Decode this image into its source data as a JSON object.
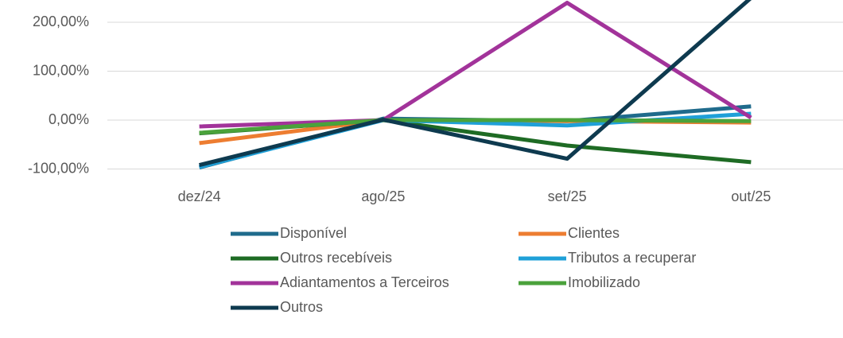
{
  "chart_data": {
    "type": "line",
    "categories": [
      "dez/24",
      "ago/25",
      "set/25",
      "out/25"
    ],
    "series": [
      {
        "name": "Disponível",
        "color": "#1f6b8c",
        "values": [
          -97,
          3,
          -2,
          28
        ]
      },
      {
        "name": "Clientes",
        "color": "#ed7d31",
        "values": [
          -47,
          0,
          -2,
          -5
        ]
      },
      {
        "name": "Outros recebíveis",
        "color": "#1e6b24",
        "values": [
          -27,
          0,
          -52,
          -86
        ]
      },
      {
        "name": "Tributos a recuperar",
        "color": "#1fa0d8",
        "values": [
          -96,
          0,
          -11,
          13
        ]
      },
      {
        "name": "Adiantamentos a Terceiros",
        "color": "#a2339a",
        "values": [
          -13,
          0,
          240,
          5
        ]
      },
      {
        "name": "Imobilizado",
        "color": "#4aa23b",
        "values": [
          -26,
          0,
          0,
          -2
        ]
      },
      {
        "name": "Outros",
        "color": "#0e3a4f",
        "values": [
          -92,
          1,
          -79,
          250
        ]
      }
    ],
    "ylim": [
      -100,
      244
    ],
    "yticks": [
      {
        "value": -100,
        "label": "-100,00%"
      },
      {
        "value": 0,
        "label": "0,00%"
      },
      {
        "value": 100,
        "label": "100,00%"
      },
      {
        "value": 200,
        "label": "200,00%"
      }
    ],
    "grid": true
  }
}
